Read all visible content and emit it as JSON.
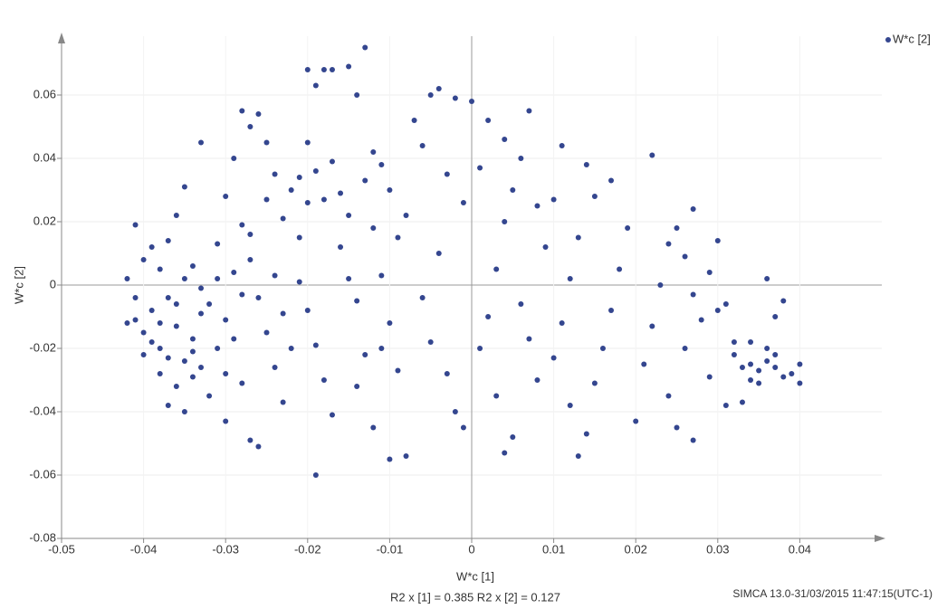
{
  "chart_data": {
    "type": "scatter",
    "x_label": "W*c [1]",
    "y_label": "W*c [2]",
    "annotations": [
      "R2 x [1] = 0.385  R2 x [2] = 0.127",
      "SIMCA 13.0-31/03/2015 11:47:15(UTC-1)"
    ],
    "xlim": [
      -0.05,
      0.05
    ],
    "ylim": [
      -0.08,
      0.08
    ],
    "xticks": [
      -0.05,
      -0.04,
      -0.03,
      -0.02,
      -0.01,
      0,
      0.01,
      0.02,
      0.03,
      0.04
    ],
    "yticks": [
      -0.08,
      -0.06,
      -0.04,
      -0.02,
      0,
      0.02,
      0.04,
      0.06
    ],
    "grid": true,
    "legend": "top-right",
    "series": [
      {
        "name": "W*c [2]",
        "color": "#34468f",
        "x": [
          -0.042,
          -0.041,
          -0.04,
          -0.039,
          -0.038,
          -0.037,
          -0.036,
          -0.035,
          -0.034,
          -0.033,
          -0.041,
          -0.039,
          -0.038,
          -0.037,
          -0.036,
          -0.035,
          -0.034,
          -0.033,
          -0.04,
          -0.038,
          -0.037,
          -0.036,
          -0.035,
          -0.034,
          -0.032,
          -0.031,
          -0.03,
          -0.029,
          -0.031,
          -0.033,
          -0.03,
          -0.029,
          -0.028,
          -0.027,
          -0.026,
          -0.025,
          -0.024,
          -0.023,
          -0.022,
          -0.021,
          -0.028,
          -0.027,
          -0.026,
          -0.025,
          -0.024,
          -0.023,
          -0.027,
          -0.026,
          -0.03,
          -0.028,
          -0.02,
          -0.019,
          -0.018,
          -0.017,
          -0.015,
          -0.014,
          -0.013,
          -0.02,
          -0.019,
          -0.018,
          -0.021,
          -0.02,
          -0.019,
          -0.018,
          -0.017,
          -0.019,
          -0.016,
          -0.015,
          -0.014,
          -0.013,
          -0.012,
          -0.011,
          -0.01,
          -0.009,
          -0.011,
          -0.01,
          -0.009,
          -0.01,
          -0.008,
          -0.012,
          -0.007,
          -0.006,
          -0.005,
          -0.004,
          -0.003,
          -0.002,
          -0.001,
          0.0,
          0.001,
          -0.004,
          -0.006,
          -0.005,
          -0.003,
          -0.002,
          -0.001,
          0.001,
          0.002,
          0.003,
          0.004,
          0.005,
          0.002,
          0.004,
          0.006,
          0.007,
          0.008,
          0.009,
          0.006,
          0.007,
          0.004,
          0.005,
          0.003,
          0.008,
          0.01,
          0.011,
          0.012,
          0.013,
          0.011,
          0.01,
          0.014,
          0.015,
          0.012,
          0.013,
          0.014,
          0.015,
          0.016,
          0.017,
          0.018,
          0.019,
          0.017,
          0.02,
          0.021,
          0.022,
          0.023,
          0.024,
          0.022,
          0.025,
          0.026,
          0.027,
          0.024,
          0.025,
          0.026,
          0.027,
          0.028,
          0.029,
          0.03,
          0.029,
          0.03,
          0.027,
          0.031,
          0.032,
          0.033,
          0.034,
          0.035,
          0.036,
          0.037,
          0.038,
          0.039,
          0.04,
          0.04,
          0.036,
          0.037,
          0.038,
          0.034,
          0.035,
          0.033,
          0.031,
          0.032,
          0.036,
          0.037,
          0.034,
          -0.042,
          -0.041,
          -0.04,
          -0.039,
          -0.038,
          -0.037,
          -0.036,
          -0.035,
          -0.034,
          -0.033,
          -0.032,
          -0.031,
          -0.03,
          -0.029,
          -0.028,
          -0.027,
          -0.025,
          -0.024,
          -0.023,
          -0.022,
          -0.021,
          -0.02,
          -0.017,
          -0.016,
          -0.015,
          -0.014,
          -0.013,
          -0.012,
          -0.011,
          -0.008
        ],
        "values": [
          0.002,
          -0.011,
          -0.015,
          -0.008,
          -0.02,
          -0.004,
          -0.013,
          -0.024,
          -0.017,
          -0.009,
          0.019,
          0.012,
          0.005,
          0.014,
          0.022,
          0.031,
          0.006,
          -0.001,
          -0.022,
          -0.028,
          -0.038,
          -0.032,
          -0.04,
          -0.029,
          -0.035,
          -0.02,
          -0.011,
          0.004,
          0.013,
          0.045,
          0.028,
          0.04,
          0.055,
          0.05,
          0.054,
          0.045,
          0.035,
          0.021,
          0.03,
          0.015,
          0.019,
          0.008,
          -0.004,
          -0.015,
          -0.026,
          -0.037,
          -0.049,
          -0.051,
          -0.043,
          -0.031,
          0.068,
          0.063,
          0.068,
          0.068,
          0.069,
          0.06,
          0.075,
          0.045,
          0.036,
          0.027,
          0.001,
          -0.008,
          -0.019,
          -0.03,
          -0.041,
          -0.06,
          0.012,
          0.022,
          -0.005,
          -0.022,
          0.042,
          0.038,
          0.03,
          0.015,
          0.003,
          -0.012,
          -0.027,
          -0.055,
          -0.054,
          -0.045,
          0.052,
          0.044,
          0.06,
          0.062,
          0.035,
          0.059,
          0.026,
          0.058,
          0.037,
          0.01,
          -0.004,
          -0.018,
          -0.028,
          -0.04,
          -0.045,
          -0.02,
          -0.01,
          0.005,
          0.02,
          0.03,
          0.052,
          0.046,
          0.04,
          0.055,
          0.025,
          0.012,
          -0.006,
          -0.017,
          -0.053,
          -0.048,
          -0.035,
          -0.03,
          -0.023,
          -0.012,
          0.002,
          0.015,
          0.044,
          0.027,
          0.038,
          0.028,
          -0.038,
          -0.054,
          -0.047,
          -0.031,
          -0.02,
          -0.008,
          0.005,
          0.018,
          0.033,
          -0.043,
          -0.025,
          -0.013,
          0.0,
          0.013,
          0.041,
          0.018,
          0.009,
          -0.003,
          -0.035,
          -0.045,
          -0.02,
          0.024,
          -0.011,
          -0.029,
          0.014,
          0.004,
          -0.008,
          -0.049,
          -0.038,
          -0.018,
          -0.026,
          -0.025,
          -0.027,
          -0.024,
          -0.026,
          -0.029,
          -0.028,
          -0.031,
          -0.025,
          0.002,
          -0.01,
          -0.005,
          -0.018,
          -0.031,
          -0.037,
          -0.006,
          -0.022,
          -0.02,
          -0.022,
          -0.03,
          -0.012,
          -0.004,
          0.008,
          -0.018,
          -0.012,
          -0.023,
          -0.006,
          0.002,
          -0.021,
          -0.026,
          -0.006,
          0.002,
          -0.028,
          -0.017,
          -0.003,
          0.016,
          0.027,
          0.003,
          -0.009,
          -0.02,
          0.034,
          0.026,
          0.039,
          0.029,
          0.002,
          -0.032,
          0.033,
          0.018,
          -0.02,
          0.022
        ]
      }
    ]
  }
}
